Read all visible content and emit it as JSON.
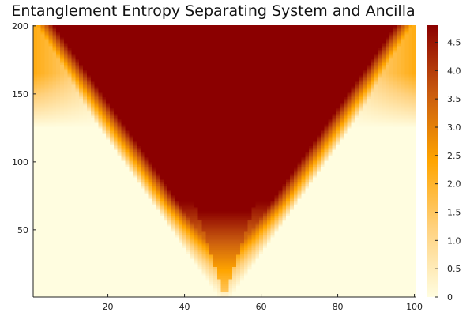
{
  "chart_data": {
    "type": "heatmap",
    "title": "Entanglement Entropy Separating System and Ancilla",
    "xlabel": "",
    "ylabel": "",
    "x_range": [
      1,
      100
    ],
    "y_range": [
      1,
      200
    ],
    "x_ticks": [
      20,
      40,
      60,
      80,
      100
    ],
    "y_ticks": [
      50,
      100,
      150,
      200
    ],
    "x_tick_labels": [
      "20",
      "40",
      "60",
      "80",
      "100"
    ],
    "y_tick_labels": [
      "50",
      "100",
      "150",
      "200"
    ],
    "colorbar": {
      "range": [
        0,
        4.8
      ],
      "ticks": [
        0,
        0.5,
        1.0,
        1.5,
        2.0,
        2.5,
        3.0,
        3.5,
        4.0,
        4.5
      ],
      "tick_labels": [
        "0",
        "0.5",
        "1.0",
        "1.5",
        "2.0",
        "2.5",
        "3.0",
        "3.5",
        "4.0",
        "4.5"
      ],
      "colormap": [
        "#fffde0",
        "#ffd280",
        "#ffa500",
        "#c95b0f",
        "#8b0000"
      ]
    },
    "structure": {
      "source_x": 50.5,
      "light_cone_slope": 4.0,
      "inner_cone_slope": 2.0,
      "max_value": 4.8,
      "edge_onset_row": 125,
      "edge_max_value": 1.6
    },
    "grid": false,
    "legend": "none"
  }
}
